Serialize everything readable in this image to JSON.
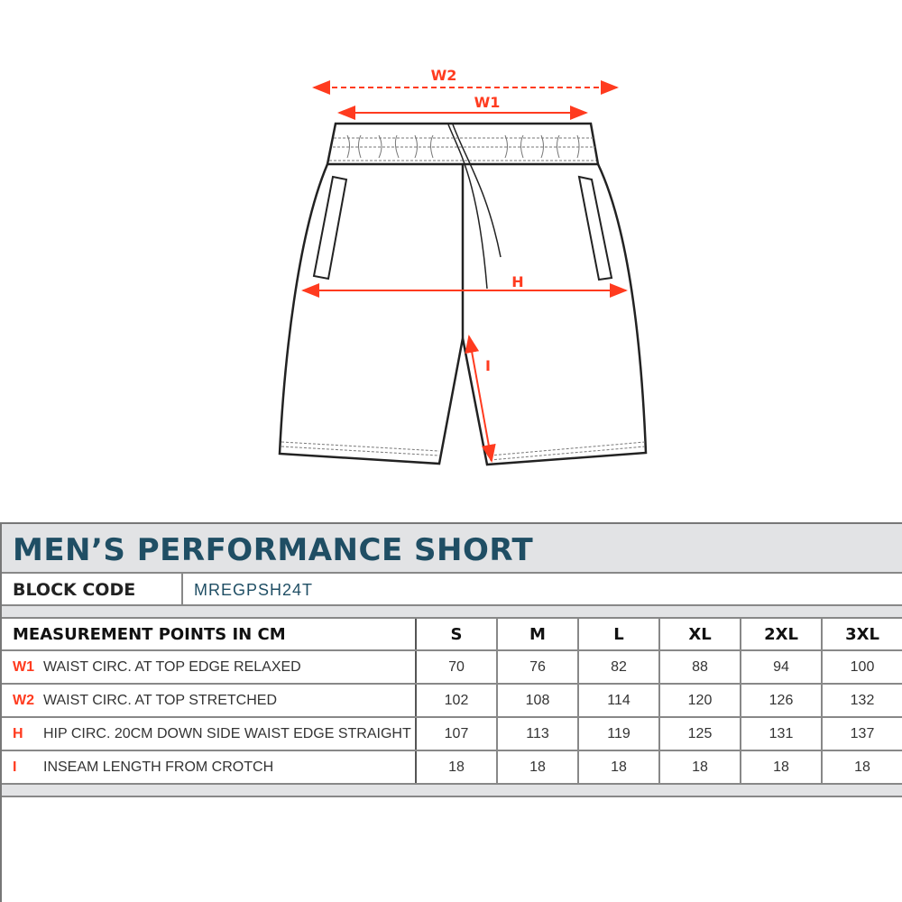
{
  "diagram": {
    "labels": {
      "w2": "W2",
      "w1": "W1",
      "h": "H",
      "i": "I"
    },
    "accent": "#ff3b1f"
  },
  "title": "MEN’S PERFORMANCE SHORT",
  "block": {
    "label": "BLOCK CODE",
    "value": "MREGPSH24T"
  },
  "table": {
    "header": "MEASUREMENT POINTS IN CM",
    "sizes": [
      "S",
      "M",
      "L",
      "XL",
      "2XL",
      "3XL"
    ],
    "rows": [
      {
        "code": "W1",
        "label": "WAIST CIRC. AT TOP EDGE RELAXED",
        "values": [
          "70",
          "76",
          "82",
          "88",
          "94",
          "100"
        ]
      },
      {
        "code": "W2",
        "label": "WAIST CIRC. AT TOP STRETCHED",
        "values": [
          "102",
          "108",
          "114",
          "120",
          "126",
          "132"
        ]
      },
      {
        "code": "H",
        "label": "HIP CIRC. 20CM DOWN SIDE WAIST EDGE STRAIGHT",
        "values": [
          "107",
          "113",
          "119",
          "125",
          "131",
          "137"
        ]
      },
      {
        "code": "I",
        "label": "INSEAM LENGTH FROM CROTCH",
        "values": [
          "18",
          "18",
          "18",
          "18",
          "18",
          "18"
        ]
      }
    ]
  }
}
